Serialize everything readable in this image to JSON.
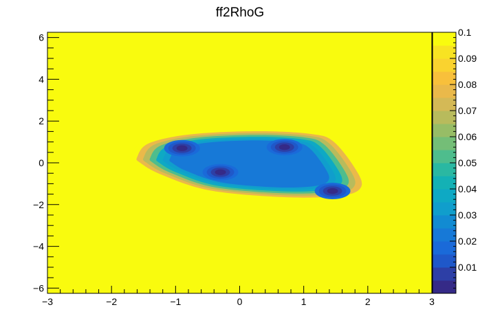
{
  "chart_data": {
    "type": "heatmap",
    "title": "ff2RhoG",
    "xlabel": "",
    "ylabel": "",
    "xlim": [
      -3,
      3
    ],
    "ylim": [
      -6.25,
      6.25
    ],
    "x_ticks": [
      -3,
      -2,
      -1,
      0,
      1,
      2,
      3
    ],
    "x_tick_labels": [
      "−3",
      "−2",
      "−1",
      "0",
      "1",
      "2",
      "3"
    ],
    "y_ticks": [
      -6,
      -4,
      -2,
      0,
      2,
      4,
      6
    ],
    "y_tick_labels": [
      "−6",
      "−4",
      "−2",
      "0",
      "2",
      "4",
      "6"
    ],
    "z_range": [
      0,
      0.1
    ],
    "z_ticks": [
      0.01,
      0.02,
      0.03,
      0.04,
      0.05,
      0.06,
      0.07,
      0.08,
      0.09,
      0.1
    ],
    "z_tick_labels": [
      "0.01",
      "0.02",
      "0.03",
      "0.04",
      "0.05",
      "0.06",
      "0.07",
      "0.08",
      "0.09",
      "0.1"
    ],
    "background_value": 0.1,
    "region": {
      "outline": [
        [
          -1.7,
          0.3
        ],
        [
          -1.5,
          1.0
        ],
        [
          -0.8,
          1.45
        ],
        [
          0.3,
          1.6
        ],
        [
          1.2,
          1.45
        ],
        [
          1.55,
          1.05
        ],
        [
          1.9,
          -0.3
        ],
        [
          2.0,
          -1.2
        ],
        [
          1.7,
          -1.65
        ],
        [
          0.8,
          -1.75
        ],
        [
          -0.5,
          -1.4
        ],
        [
          -1.3,
          -0.6
        ],
        [
          -1.65,
          0.0
        ]
      ],
      "level_values": [
        0.095,
        0.08,
        0.065,
        0.05,
        0.04,
        0.03,
        0.022
      ],
      "minima": [
        {
          "x": -0.9,
          "y": 0.7,
          "value": 0.004
        },
        {
          "x": 0.7,
          "y": 0.75,
          "value": 0.004
        },
        {
          "x": -0.3,
          "y": -0.45,
          "value": 0.003
        },
        {
          "x": 1.45,
          "y": -1.35,
          "value": 0.003
        }
      ]
    },
    "palette": [
      "#352a87",
      "#2d3fa6",
      "#1f58c9",
      "#1a6ad9",
      "#1779d7",
      "#128bd2",
      "#109ecc",
      "#0ea9c4",
      "#14b1b5",
      "#2ab8a2",
      "#4ebd8d",
      "#74be77",
      "#97bd66",
      "#b8bb5c",
      "#d4b956",
      "#eab94a",
      "#f8c03b",
      "#fad32f",
      "#f8e322",
      "#f9fb0e"
    ],
    "grid": false,
    "legend": "color-bar-right"
  }
}
